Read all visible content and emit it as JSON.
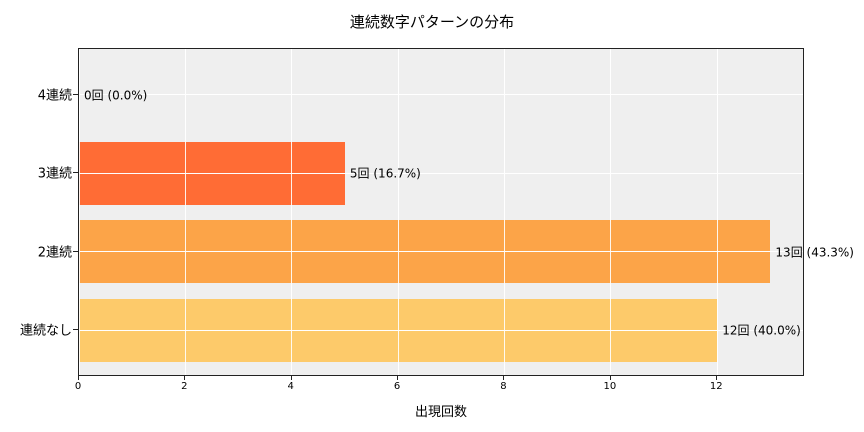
{
  "chart_data": {
    "type": "bar",
    "orientation": "horizontal",
    "title": "連続数字パターンの分布",
    "xlabel": "出現回数",
    "ylabel": "",
    "categories": [
      "連続なし",
      "2連続",
      "3連続",
      "4連続"
    ],
    "values": [
      12,
      13,
      5,
      0
    ],
    "percentages": [
      40.0,
      43.3,
      16.7,
      0.0
    ],
    "data_labels": [
      "12回 (40.0%)",
      "13回 (43.3%)",
      "5回 (16.7%)",
      "0回 (0.0%)"
    ],
    "colors": [
      "#fdca6a",
      "#fca448",
      "#ff6c35",
      "#ff4520"
    ],
    "xlim": [
      0,
      13.65
    ],
    "xticks": [
      0,
      2,
      4,
      6,
      8,
      10,
      12
    ],
    "xtick_labels": [
      "0",
      "2",
      "4",
      "6",
      "8",
      "10",
      "12"
    ],
    "grid": true,
    "legend": null
  }
}
